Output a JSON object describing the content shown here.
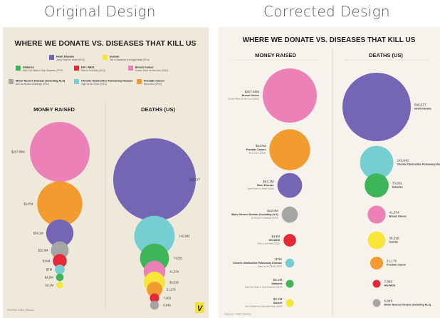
{
  "headings": {
    "original": "Original Design",
    "corrected": "Corrected Design"
  },
  "colors": {
    "heart": "#7566b5",
    "suicide": "#f7e53a",
    "diabetes": "#3fb55a",
    "hiv": "#e32a36",
    "breast": "#ec81b8",
    "als": "#a5a5a5",
    "copd": "#76ced3",
    "prostate": "#f29b2e"
  },
  "chart_data": [
    {
      "type": "bubble",
      "title": "WHERE WE DONATE VS. DISEASES THAT KILL US",
      "source": "Source: CDC (2011)",
      "logo": "V",
      "legend": [
        {
          "key": "heart",
          "name": "Heart Disease",
          "detail": "Jump Rope for Heart (2013)"
        },
        {
          "key": "suicide",
          "name": "Suicide",
          "detail": "Out of Darkness Overnight Walk (2014)"
        },
        {
          "key": "diabetes",
          "name": "Diabetes",
          "detail": "Step Out: Walk to Stop Diabetes (2013)"
        },
        {
          "key": "hiv",
          "name": "HIV / AIDS",
          "detail": "Ride to End Aids (2013)"
        },
        {
          "key": "breast",
          "name": "Breast Cancer",
          "detail": "Komen Race for the Cure (2012)"
        },
        {
          "key": "als",
          "name": "Motor Neuron Disease (Including ALS)",
          "detail": "ALS Ice Bucket Challenge (2014)"
        },
        {
          "key": "copd",
          "name": "Chronic Obstructive Pulmonary Disease",
          "detail": "Fight for Air Climb (2013)"
        },
        {
          "key": "prostate",
          "name": "Prostate Cancer",
          "detail": "Movember (2013)"
        }
      ],
      "columns": [
        {
          "title": "MONEY RAISED",
          "items": [
            {
              "key": "breast",
              "value": 257.85,
              "label": "$257.85M"
            },
            {
              "key": "prostate",
              "value": 147,
              "label": "$147M"
            },
            {
              "key": "heart",
              "value": 54.1,
              "label": "$54.1M"
            },
            {
              "key": "als",
              "value": 22.9,
              "label": "$22.9M"
            },
            {
              "key": "hiv",
              "value": 14,
              "label": "$14M"
            },
            {
              "key": "copd",
              "value": 7,
              "label": "$7M"
            },
            {
              "key": "diabetes",
              "value": 4.2,
              "label": "$4.2M"
            },
            {
              "key": "suicide",
              "value": 3.2,
              "label": "$3.2M"
            }
          ]
        },
        {
          "title": "DEATHS (US)",
          "items": [
            {
              "key": "heart",
              "value": 596577,
              "label": "596,577"
            },
            {
              "key": "copd",
              "value": 142942,
              "label": "142,942"
            },
            {
              "key": "diabetes",
              "value": 73831,
              "label": "73,831"
            },
            {
              "key": "breast",
              "value": 41374,
              "label": "41,374"
            },
            {
              "key": "suicide",
              "value": 39518,
              "label": "39,518"
            },
            {
              "key": "prostate",
              "value": 21176,
              "label": "21,176"
            },
            {
              "key": "hiv",
              "value": 7683,
              "label": "7,683"
            },
            {
              "key": "als",
              "value": 6849,
              "label": "6,849"
            }
          ]
        }
      ]
    },
    {
      "type": "bubble",
      "title": "WHERE WE DONATE VS. DISEASES THAT KILL US",
      "source": "Source: CDC (2011)",
      "columns": [
        {
          "title": "MONEY RAISED",
          "items": [
            {
              "key": "breast",
              "value": 257.85,
              "label": "$257.85M",
              "name": "Breast Cancer",
              "detail": "Komen Race for the Cure (2012)"
            },
            {
              "key": "prostate",
              "value": 147,
              "label": "$147M",
              "name": "Prostate Cancer",
              "detail": "Movember (2013)"
            },
            {
              "key": "heart",
              "value": 54.1,
              "label": "$54.1M",
              "name": "Heart Disease",
              "detail": "Jump Rope for Heart (2013)"
            },
            {
              "key": "als",
              "value": 22.9,
              "label": "$22.9M",
              "name": "Motor Neuron Disease (Including ALS)",
              "detail": "Ice Bucket Challenge (2014)"
            },
            {
              "key": "hiv",
              "value": 14,
              "label": "$14M",
              "name": "HIV/AIDS",
              "detail": "Ride to End Aids (2013)"
            },
            {
              "key": "copd",
              "value": 7,
              "label": "$7M",
              "name": "Chronic Obstructive Pulmonary Disease",
              "detail": "Fight for Air Climb (2013)"
            },
            {
              "key": "diabetes",
              "value": 4.2,
              "label": "$4.2M",
              "name": "Diabetes",
              "detail": "Step Out: Walk to Stop Diabetes (2013)"
            },
            {
              "key": "suicide",
              "value": 3.2,
              "label": "$3.2M",
              "name": "Suicide",
              "detail": "Out of Darkness Overnight Walk (2014)"
            }
          ]
        },
        {
          "title": "DEATHS (US)",
          "items": [
            {
              "key": "heart",
              "value": 596577,
              "label": "596,577",
              "name": "Heart Disease"
            },
            {
              "key": "copd",
              "value": 142942,
              "label": "142,942",
              "name": "Chronic Obstructive Pulmonary Disease"
            },
            {
              "key": "diabetes",
              "value": 73831,
              "label": "73,831",
              "name": "Diabetes"
            },
            {
              "key": "breast",
              "value": 41374,
              "label": "41,374",
              "name": "Breast Cancer"
            },
            {
              "key": "suicide",
              "value": 39518,
              "label": "39,518",
              "name": "Suicide"
            },
            {
              "key": "prostate",
              "value": 21176,
              "label": "21,176",
              "name": "Prostate Cancer"
            },
            {
              "key": "hiv",
              "value": 7683,
              "label": "7,683",
              "name": "HIV/AIDS"
            },
            {
              "key": "als",
              "value": 6849,
              "label": "6,849",
              "name": "Motor Neuron Disease (Including ALS)"
            }
          ]
        }
      ]
    }
  ]
}
